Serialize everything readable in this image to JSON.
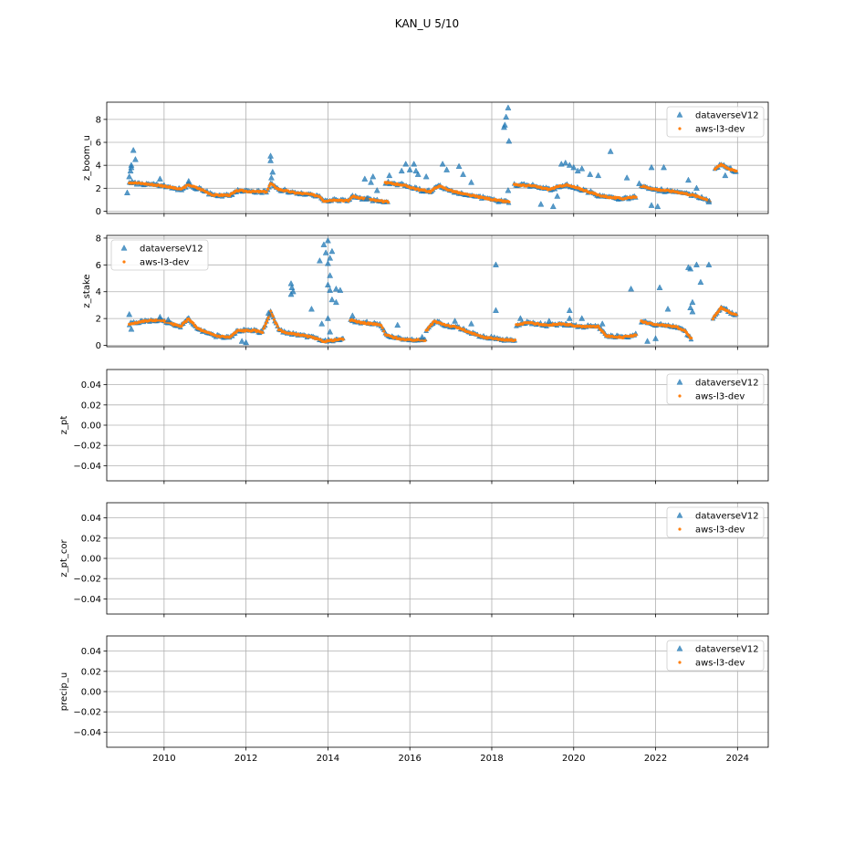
{
  "chart_data": {
    "type": "scatter",
    "title": "KAN_U 5/10",
    "x_ticks": [
      "2010",
      "2012",
      "2014",
      "2016",
      "2018",
      "2020",
      "2022",
      "2024"
    ],
    "xlim": [
      2008.6,
      2024.75
    ],
    "series_names": [
      "dataverseV12",
      "aws-l3-dev"
    ],
    "colors": {
      "dataverseV12": "#1f77b4",
      "aws-l3-dev": "#ff7f0e",
      "grid": "#b0b0b0"
    },
    "markers": {
      "dataverseV12": "triangle",
      "aws-l3-dev": "point"
    },
    "legend_position": "upper-right of each panel (upper-left in z_stake panel)",
    "grid": true,
    "panels": [
      {
        "ylabel": "z_boom_u",
        "ylim": [
          -0.2,
          9.5
        ],
        "y_ticks": [
          "0",
          "2",
          "4",
          "6",
          "8"
        ],
        "y_tick_values": [
          0,
          2,
          4,
          6,
          8
        ],
        "segments": [
          [
            [
              2009.15,
              2.5
            ],
            [
              2009.5,
              2.4
            ],
            [
              2010.0,
              2.2
            ],
            [
              2010.4,
              1.9
            ],
            [
              2010.6,
              2.3
            ],
            [
              2010.9,
              1.9
            ],
            [
              2011.2,
              1.4
            ],
            [
              2011.6,
              1.4
            ],
            [
              2011.8,
              1.8
            ],
            [
              2012.2,
              1.7
            ],
            [
              2012.5,
              1.7
            ],
            [
              2012.6,
              2.4
            ],
            [
              2012.8,
              1.9
            ],
            [
              2013.2,
              1.6
            ],
            [
              2013.5,
              1.5
            ],
            [
              2013.8,
              1.3
            ],
            [
              2013.9,
              0.9
            ],
            [
              2014.2,
              1.0
            ],
            [
              2014.5,
              0.9
            ],
            [
              2014.6,
              1.3
            ],
            [
              2014.9,
              1.1
            ],
            [
              2015.2,
              0.9
            ],
            [
              2015.5,
              0.8
            ]
          ],
          [
            [
              2015.4,
              2.5
            ],
            [
              2015.8,
              2.3
            ],
            [
              2016.2,
              1.9
            ],
            [
              2016.5,
              1.7
            ],
            [
              2016.7,
              2.2
            ],
            [
              2017.0,
              1.8
            ],
            [
              2017.3,
              1.5
            ],
            [
              2017.6,
              1.3
            ],
            [
              2017.9,
              1.1
            ],
            [
              2018.2,
              0.9
            ],
            [
              2018.45,
              0.8
            ]
          ],
          [
            [
              2018.55,
              2.3
            ],
            [
              2019.0,
              2.2
            ],
            [
              2019.4,
              1.9
            ],
            [
              2019.8,
              2.3
            ],
            [
              2020.2,
              1.9
            ],
            [
              2020.6,
              1.4
            ],
            [
              2020.9,
              1.2
            ],
            [
              2021.2,
              1.1
            ],
            [
              2021.55,
              1.3
            ]
          ],
          [
            [
              2021.65,
              2.2
            ],
            [
              2022.0,
              1.9
            ],
            [
              2022.5,
              1.7
            ],
            [
              2022.9,
              1.4
            ],
            [
              2023.2,
              1.1
            ],
            [
              2023.35,
              0.8
            ]
          ],
          [
            [
              2023.45,
              3.7
            ],
            [
              2023.6,
              4.1
            ],
            [
              2023.8,
              3.7
            ],
            [
              2024.0,
              3.4
            ]
          ]
        ],
        "outliers": [
          [
            2009.1,
            1.6
          ],
          [
            2009.15,
            3.0
          ],
          [
            2009.18,
            3.5
          ],
          [
            2009.2,
            4.0
          ],
          [
            2009.25,
            5.3
          ],
          [
            2009.3,
            4.5
          ],
          [
            2009.2,
            3.8
          ],
          [
            2009.9,
            2.8
          ],
          [
            2010.6,
            2.6
          ],
          [
            2012.6,
            4.8
          ],
          [
            2012.6,
            4.4
          ],
          [
            2012.65,
            3.4
          ],
          [
            2012.62,
            2.9
          ],
          [
            2014.9,
            2.8
          ],
          [
            2015.1,
            3.0
          ],
          [
            2015.05,
            2.5
          ],
          [
            2015.2,
            1.8
          ],
          [
            2014.95,
            1.1
          ],
          [
            2015.5,
            3.1
          ],
          [
            2015.8,
            3.5
          ],
          [
            2015.9,
            4.1
          ],
          [
            2016.0,
            3.6
          ],
          [
            2016.1,
            4.1
          ],
          [
            2016.15,
            3.5
          ],
          [
            2016.2,
            3.2
          ],
          [
            2016.4,
            3.0
          ],
          [
            2016.8,
            4.1
          ],
          [
            2016.9,
            3.6
          ],
          [
            2017.2,
            3.9
          ],
          [
            2017.3,
            3.2
          ],
          [
            2017.5,
            2.5
          ],
          [
            2018.3,
            7.3
          ],
          [
            2018.32,
            7.5
          ],
          [
            2018.35,
            8.2
          ],
          [
            2018.4,
            9.0
          ],
          [
            2018.42,
            6.1
          ],
          [
            2018.4,
            1.8
          ],
          [
            2019.2,
            0.6
          ],
          [
            2019.5,
            0.4
          ],
          [
            2019.6,
            1.3
          ],
          [
            2019.7,
            4.1
          ],
          [
            2019.8,
            4.2
          ],
          [
            2019.9,
            4.0
          ],
          [
            2020.0,
            3.8
          ],
          [
            2020.1,
            3.5
          ],
          [
            2020.2,
            3.7
          ],
          [
            2020.4,
            3.2
          ],
          [
            2020.6,
            3.1
          ],
          [
            2020.9,
            5.2
          ],
          [
            2021.3,
            2.9
          ],
          [
            2021.6,
            2.4
          ],
          [
            2021.9,
            3.8
          ],
          [
            2022.2,
            3.8
          ],
          [
            2021.9,
            0.5
          ],
          [
            2022.05,
            0.4
          ],
          [
            2022.8,
            2.7
          ],
          [
            2023.0,
            2.0
          ],
          [
            2023.3,
            0.8
          ],
          [
            2023.7,
            3.1
          ]
        ]
      },
      {
        "ylabel": "z_stake",
        "ylim": [
          -0.1,
          8.2
        ],
        "y_ticks": [
          "0",
          "2",
          "4",
          "6",
          "8"
        ],
        "y_tick_values": [
          0,
          2,
          4,
          6,
          8
        ],
        "segments": [
          [
            [
              2009.15,
              1.6
            ],
            [
              2009.5,
              1.8
            ],
            [
              2009.9,
              1.9
            ],
            [
              2010.2,
              1.6
            ],
            [
              2010.4,
              1.4
            ],
            [
              2010.6,
              2.0
            ],
            [
              2010.8,
              1.3
            ],
            [
              2011.0,
              1.0
            ],
            [
              2011.3,
              0.7
            ],
            [
              2011.6,
              0.6
            ],
            [
              2011.8,
              1.1
            ],
            [
              2012.2,
              1.1
            ],
            [
              2012.4,
              1.0
            ],
            [
              2012.6,
              2.5
            ],
            [
              2012.8,
              1.2
            ],
            [
              2013.0,
              0.9
            ],
            [
              2013.3,
              0.8
            ],
            [
              2013.6,
              0.6
            ],
            [
              2013.9,
              0.3
            ],
            [
              2014.2,
              0.4
            ],
            [
              2014.4,
              0.5
            ]
          ],
          [
            [
              2014.55,
              1.9
            ],
            [
              2014.8,
              1.7
            ],
            [
              2015.1,
              1.6
            ],
            [
              2015.3,
              1.5
            ],
            [
              2015.4,
              0.8
            ],
            [
              2015.6,
              0.6
            ],
            [
              2015.9,
              0.4
            ],
            [
              2016.2,
              0.4
            ],
            [
              2016.4,
              0.4
            ]
          ],
          [
            [
              2016.4,
              1.1
            ],
            [
              2016.6,
              1.8
            ],
            [
              2016.9,
              1.5
            ],
            [
              2017.2,
              1.3
            ],
            [
              2017.5,
              0.9
            ],
            [
              2017.8,
              0.6
            ],
            [
              2018.1,
              0.5
            ],
            [
              2018.3,
              0.4
            ],
            [
              2018.6,
              0.4
            ]
          ],
          [
            [
              2018.6,
              1.5
            ],
            [
              2018.9,
              1.7
            ],
            [
              2019.3,
              1.5
            ],
            [
              2019.7,
              1.6
            ],
            [
              2020.2,
              1.4
            ],
            [
              2020.6,
              1.4
            ],
            [
              2020.8,
              0.7
            ],
            [
              2021.2,
              0.6
            ],
            [
              2021.55,
              0.8
            ]
          ],
          [
            [
              2021.65,
              1.8
            ],
            [
              2021.9,
              1.6
            ],
            [
              2022.2,
              1.5
            ],
            [
              2022.5,
              1.4
            ],
            [
              2022.7,
              1.1
            ],
            [
              2022.9,
              0.4
            ]
          ],
          [
            [
              2023.4,
              2.0
            ],
            [
              2023.6,
              2.8
            ],
            [
              2023.8,
              2.5
            ],
            [
              2024.0,
              2.2
            ]
          ]
        ],
        "outliers": [
          [
            2009.15,
            2.3
          ],
          [
            2009.2,
            1.2
          ],
          [
            2009.9,
            2.1
          ],
          [
            2010.1,
            1.9
          ],
          [
            2012.55,
            2.4
          ],
          [
            2012.0,
            0.2
          ],
          [
            2011.9,
            0.3
          ],
          [
            2013.1,
            4.6
          ],
          [
            2013.12,
            4.3
          ],
          [
            2013.15,
            4.0
          ],
          [
            2013.1,
            3.8
          ],
          [
            2013.6,
            2.7
          ],
          [
            2013.8,
            6.3
          ],
          [
            2013.85,
            1.6
          ],
          [
            2013.9,
            7.5
          ],
          [
            2013.95,
            6.9
          ],
          [
            2014.0,
            7.8
          ],
          [
            2014.05,
            6.5
          ],
          [
            2014.0,
            6.1
          ],
          [
            2014.05,
            5.2
          ],
          [
            2014.1,
            7.0
          ],
          [
            2014.0,
            4.5
          ],
          [
            2014.05,
            4.1
          ],
          [
            2014.1,
            3.4
          ],
          [
            2014.2,
            4.2
          ],
          [
            2014.3,
            4.1
          ],
          [
            2014.2,
            3.2
          ],
          [
            2014.0,
            2.0
          ],
          [
            2014.05,
            1.0
          ],
          [
            2014.6,
            2.2
          ],
          [
            2015.7,
            1.5
          ],
          [
            2016.3,
            0.6
          ],
          [
            2017.1,
            1.8
          ],
          [
            2017.5,
            1.6
          ],
          [
            2018.1,
            6.0
          ],
          [
            2018.1,
            2.6
          ],
          [
            2018.7,
            2.0
          ],
          [
            2019.4,
            1.8
          ],
          [
            2019.9,
            2.6
          ],
          [
            2019.9,
            2.0
          ],
          [
            2020.2,
            2.0
          ],
          [
            2020.7,
            1.6
          ],
          [
            2021.4,
            4.2
          ],
          [
            2021.8,
            0.3
          ],
          [
            2022.0,
            0.5
          ],
          [
            2022.1,
            4.3
          ],
          [
            2022.3,
            2.7
          ],
          [
            2022.8,
            5.8
          ],
          [
            2022.85,
            5.7
          ],
          [
            2022.9,
            3.2
          ],
          [
            2022.85,
            2.8
          ],
          [
            2022.9,
            2.5
          ],
          [
            2023.0,
            6.0
          ],
          [
            2023.1,
            4.7
          ],
          [
            2023.3,
            6.0
          ]
        ]
      },
      {
        "ylabel": "z_pt",
        "ylim": [
          -0.055,
          0.055
        ],
        "y_ticks": [
          "0.04",
          "0.02",
          "0.00",
          "−0.02",
          "−0.04"
        ],
        "y_tick_values": [
          0.04,
          0.02,
          0.0,
          -0.02,
          -0.04
        ],
        "segments": [],
        "outliers": []
      },
      {
        "ylabel": "z_pt_cor",
        "ylim": [
          -0.055,
          0.055
        ],
        "y_ticks": [
          "0.04",
          "0.02",
          "0.00",
          "−0.02",
          "−0.04"
        ],
        "y_tick_values": [
          0.04,
          0.02,
          0.0,
          -0.02,
          -0.04
        ],
        "segments": [],
        "outliers": []
      },
      {
        "ylabel": "precip_u",
        "ylim": [
          -0.055,
          0.055
        ],
        "y_ticks": [
          "0.04",
          "0.02",
          "0.00",
          "−0.02",
          "−0.04"
        ],
        "y_tick_values": [
          0.04,
          0.02,
          0.0,
          -0.02,
          -0.04
        ],
        "segments": [],
        "outliers": []
      }
    ]
  }
}
